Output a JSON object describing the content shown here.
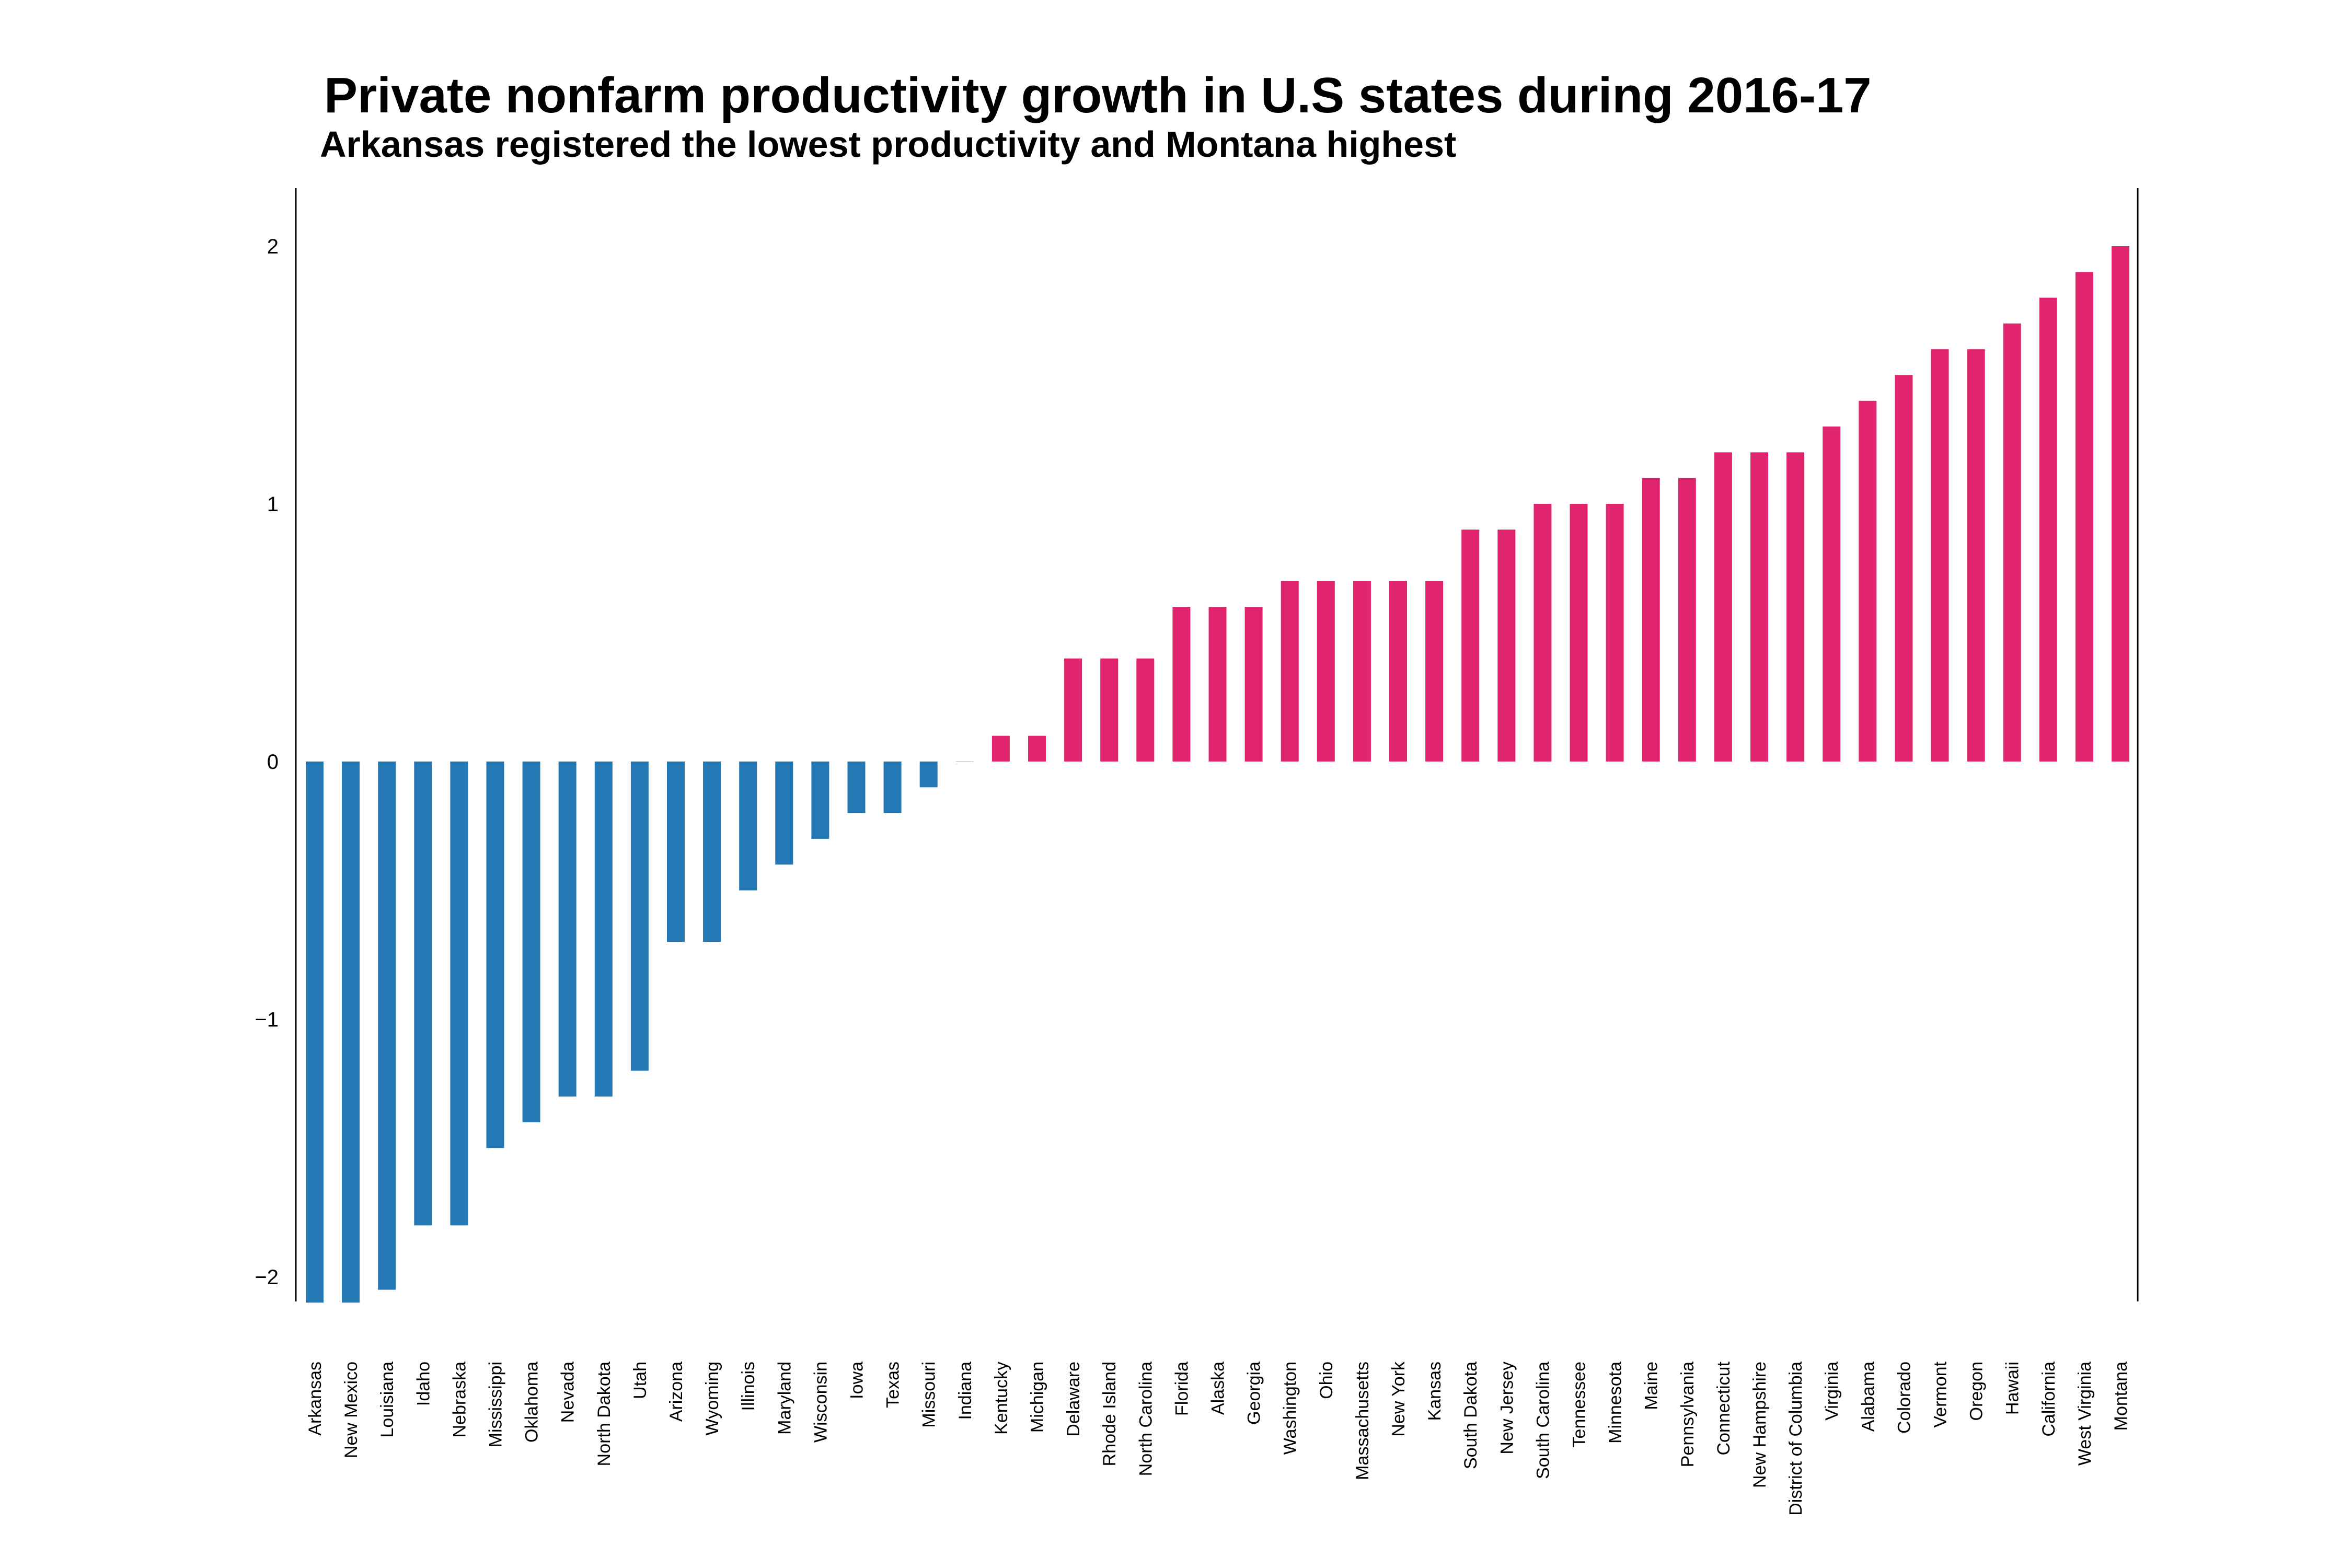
{
  "chart_data": {
    "type": "bar",
    "title": "Private nonfarm productivity growth in U.S states during 2016-17",
    "subtitle": "Arkansas registered the lowest productivity and Montana highest",
    "xlabel": "",
    "ylabel": "",
    "ylim": [
      -2.0,
      2.2
    ],
    "yticks": [
      2,
      1,
      0,
      -1,
      -2
    ],
    "grid": false,
    "legend": "none",
    "colors": {
      "negative": "#2479b5",
      "positive": "#e0246e",
      "axis": "#000000"
    },
    "categories": [
      "Arkansas",
      "New Mexico",
      "Louisiana",
      "Idaho",
      "Nebraska",
      "Mississippi",
      "Oklahoma",
      "Nevada",
      "North Dakota",
      "Utah",
      "Arizona",
      "Wyoming",
      "Illinois",
      "Maryland",
      "Wisconsin",
      "Iowa",
      "Texas",
      "Missouri",
      "Indiana",
      "Kentucky",
      "Michigan",
      "Delaware",
      "Rhode Island",
      "North Carolina",
      "Florida",
      "Alaska",
      "Georgia",
      "Washington",
      "Ohio",
      "Massachusetts",
      "New York",
      "Kansas",
      "South Dakota",
      "New Jersey",
      "South Carolina",
      "Tennessee",
      "Minnesota",
      "Maine",
      "Pennsylvania",
      "Connecticut",
      "New Hampshire",
      "District of Columbia",
      "Virginia",
      "Alabama",
      "Colorado",
      "Vermont",
      "Oregon",
      "Hawaii",
      "California",
      "West Virginia",
      "Montana"
    ],
    "values": [
      -2.1,
      -2.1,
      -2.05,
      -1.8,
      -1.8,
      -1.5,
      -1.4,
      -1.3,
      -1.3,
      -1.2,
      -0.7,
      -0.7,
      -0.5,
      -0.4,
      -0.3,
      -0.2,
      -0.2,
      -0.1,
      0.0,
      0.1,
      0.1,
      0.4,
      0.4,
      0.4,
      0.6,
      0.6,
      0.6,
      0.7,
      0.7,
      0.7,
      0.7,
      0.7,
      0.9,
      0.9,
      1.0,
      1.0,
      1.0,
      1.1,
      1.1,
      1.2,
      1.2,
      1.2,
      1.3,
      1.4,
      1.5,
      1.6,
      1.6,
      1.7,
      1.8,
      1.9,
      2.0
    ]
  }
}
